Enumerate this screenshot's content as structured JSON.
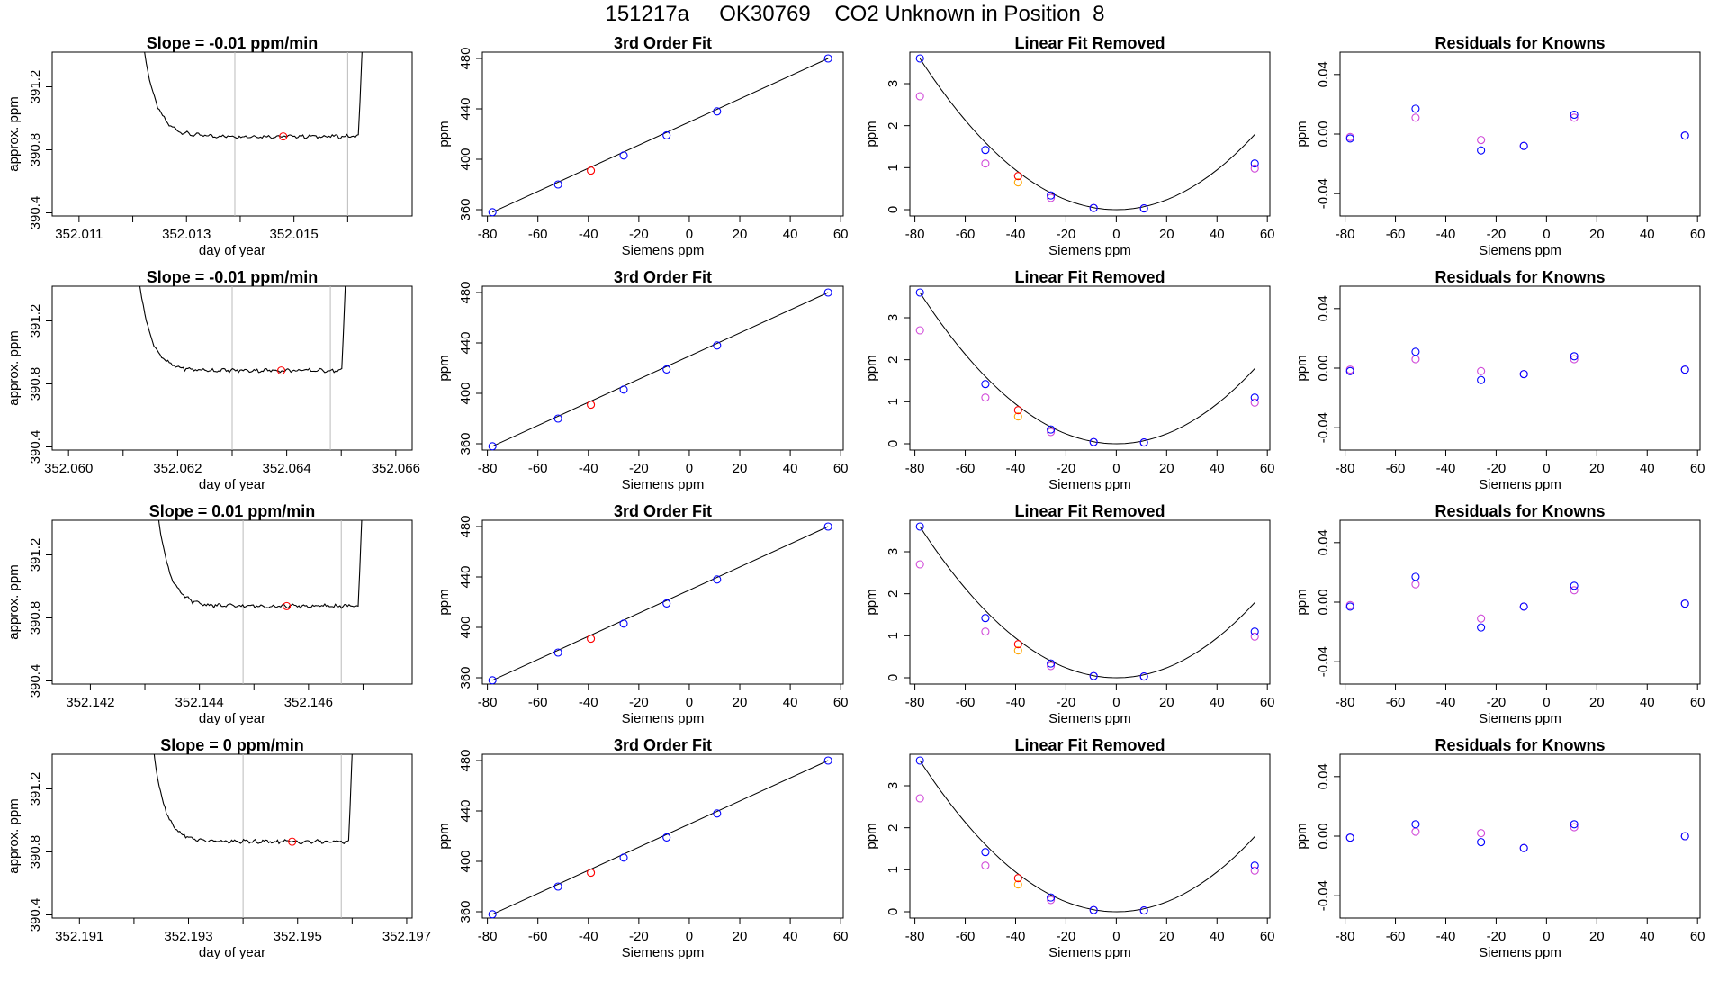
{
  "page_title": "151217a     OK30769    CO2 Unknown in Position  8",
  "axis_text": {
    "col1_xlabel": "day of year",
    "col1_ylabel": "approx. ppm",
    "fit_xlabel": "Siemens ppm",
    "fit_ylabel": "ppm"
  },
  "colors": {
    "trace": "#000000",
    "known": "#0000ff",
    "unknown": "#ff0000",
    "removed_alt": "#d048d8",
    "orange": "#ffa500",
    "vline": "#bbbbbb"
  },
  "chart_data": [
    {
      "type": "line",
      "row": 0,
      "panel": "trace",
      "title": "Slope =  -0.01  ppm/min",
      "xlabel": "day of year",
      "ylabel": "approx. ppm",
      "xlim": [
        352.0105,
        352.0172
      ],
      "ylim": [
        390.38,
        391.42
      ],
      "xticks": [
        352.011,
        352.013,
        352.015
      ],
      "xticks_minor": [
        352.012,
        352.014,
        352.016
      ],
      "yticks": [
        390.4,
        390.8,
        391.2
      ],
      "baseline": 390.885,
      "vlines": [
        352.0139,
        352.016
      ],
      "unknown_point": [
        352.0148,
        390.885
      ],
      "trace_start": 352.0121,
      "trace_end": 352.01635
    },
    {
      "type": "scatter",
      "row": 0,
      "panel": "fit",
      "title": "3rd Order Fit",
      "xlabel": "Siemens ppm",
      "ylabel": "ppm",
      "xlim": [
        -82,
        61
      ],
      "ylim": [
        355,
        485
      ],
      "xticks": [
        -80,
        -60,
        -40,
        -20,
        0,
        20,
        40,
        60
      ],
      "yticks": [
        360,
        400,
        440,
        480
      ],
      "knowns_x": [
        -78,
        -52,
        -26,
        -9,
        11,
        55
      ],
      "knowns_y": [
        358,
        380,
        403,
        419,
        438,
        480
      ],
      "unknown": [
        -39,
        391
      ]
    },
    {
      "type": "scatter",
      "row": 0,
      "panel": "removed",
      "title": "Linear Fit Removed",
      "xlabel": "Siemens ppm",
      "ylabel": "ppm",
      "xlim": [
        -82,
        61
      ],
      "ylim": [
        -0.15,
        3.75
      ],
      "xticks": [
        -80,
        -60,
        -40,
        -20,
        0,
        20,
        40,
        60
      ],
      "yticks": [
        0,
        1,
        2,
        3
      ],
      "knowns_x": [
        -78,
        -52,
        -26,
        -9,
        11,
        55
      ],
      "knowns_y": [
        3.6,
        1.42,
        0.34,
        0.04,
        0.03,
        1.1
      ],
      "alt_y": [
        2.7,
        1.1,
        0.28,
        0.04,
        0.03,
        0.98
      ],
      "unknown": [
        -39,
        0.8
      ],
      "unknown_alt": [
        -39,
        0.65
      ]
    },
    {
      "type": "scatter",
      "row": 0,
      "panel": "residuals",
      "title": "Residuals for Knowns",
      "xlabel": "Siemens ppm",
      "ylabel": "ppm",
      "xlim": [
        -82,
        61
      ],
      "ylim": [
        -0.055,
        0.055
      ],
      "xticks": [
        -80,
        -60,
        -40,
        -20,
        0,
        20,
        40,
        60
      ],
      "yticks": [
        -0.04,
        0.0,
        0.04
      ],
      "knowns_x": [
        -78,
        -52,
        -26,
        -9,
        11,
        55
      ],
      "knowns_y": [
        -0.003,
        0.017,
        -0.011,
        -0.008,
        0.013,
        -0.001
      ],
      "alt_y": [
        -0.002,
        0.011,
        -0.004,
        -0.008,
        0.011,
        -0.001
      ]
    },
    {
      "type": "line",
      "row": 1,
      "panel": "trace",
      "title": "Slope =  -0.01  ppm/min",
      "xlabel": "day of year",
      "ylabel": "approx. ppm",
      "xlim": [
        352.0597,
        352.0663
      ],
      "ylim": [
        390.38,
        391.42
      ],
      "xticks": [
        352.06,
        352.062,
        352.064,
        352.066
      ],
      "xticks_minor": [
        352.061,
        352.063,
        352.065
      ],
      "yticks": [
        390.4,
        390.8,
        391.2
      ],
      "baseline": 390.885,
      "vlines": [
        352.063,
        352.0648
      ],
      "unknown_point": [
        352.0639,
        390.885
      ],
      "trace_start": 352.0612,
      "trace_end": 352.06515
    },
    {
      "type": "scatter",
      "row": 1,
      "panel": "fit",
      "title": "3rd Order Fit",
      "xlabel": "Siemens ppm",
      "ylabel": "ppm",
      "xlim": [
        -82,
        61
      ],
      "ylim": [
        355,
        485
      ],
      "xticks": [
        -80,
        -60,
        -40,
        -20,
        0,
        20,
        40,
        60
      ],
      "yticks": [
        360,
        400,
        440,
        480
      ],
      "knowns_x": [
        -78,
        -52,
        -26,
        -9,
        11,
        55
      ],
      "knowns_y": [
        358,
        380,
        403,
        419,
        438,
        480
      ],
      "unknown": [
        -39,
        391
      ]
    },
    {
      "type": "scatter",
      "row": 1,
      "panel": "removed",
      "title": "Linear Fit Removed",
      "xlabel": "Siemens ppm",
      "ylabel": "ppm",
      "xlim": [
        -82,
        61
      ],
      "ylim": [
        -0.15,
        3.75
      ],
      "xticks": [
        -80,
        -60,
        -40,
        -20,
        0,
        20,
        40,
        60
      ],
      "yticks": [
        0,
        1,
        2,
        3
      ],
      "knowns_x": [
        -78,
        -52,
        -26,
        -9,
        11,
        55
      ],
      "knowns_y": [
        3.6,
        1.42,
        0.34,
        0.04,
        0.03,
        1.1
      ],
      "alt_y": [
        2.7,
        1.1,
        0.28,
        0.04,
        0.03,
        0.98
      ],
      "unknown": [
        -39,
        0.8
      ],
      "unknown_alt": [
        -39,
        0.65
      ]
    },
    {
      "type": "scatter",
      "row": 1,
      "panel": "residuals",
      "title": "Residuals for Knowns",
      "xlabel": "Siemens ppm",
      "ylabel": "ppm",
      "xlim": [
        -82,
        61
      ],
      "ylim": [
        -0.055,
        0.055
      ],
      "xticks": [
        -80,
        -60,
        -40,
        -20,
        0,
        20,
        40,
        60
      ],
      "yticks": [
        -0.04,
        0.0,
        0.04
      ],
      "knowns_x": [
        -78,
        -52,
        -26,
        -9,
        11,
        55
      ],
      "knowns_y": [
        -0.002,
        0.011,
        -0.008,
        -0.004,
        0.008,
        -0.001
      ],
      "alt_y": [
        -0.001,
        0.006,
        -0.002,
        -0.004,
        0.006,
        -0.001
      ]
    },
    {
      "type": "line",
      "row": 2,
      "panel": "trace",
      "title": "Slope =  0.01  ppm/min",
      "xlabel": "day of year",
      "ylabel": "approx. ppm",
      "xlim": [
        352.1413,
        352.1479
      ],
      "ylim": [
        390.38,
        391.42
      ],
      "xticks": [
        352.142,
        352.144,
        352.146
      ],
      "xticks_minor": [
        352.143,
        352.145,
        352.147
      ],
      "yticks": [
        390.4,
        390.8,
        391.2
      ],
      "baseline": 390.875,
      "vlines": [
        352.1448,
        352.1466
      ],
      "unknown_point": [
        352.1456,
        390.875
      ],
      "trace_start": 352.14315,
      "trace_end": 352.14705
    },
    {
      "type": "scatter",
      "row": 2,
      "panel": "fit",
      "title": "3rd Order Fit",
      "xlabel": "Siemens ppm",
      "ylabel": "ppm",
      "xlim": [
        -82,
        61
      ],
      "ylim": [
        355,
        485
      ],
      "xticks": [
        -80,
        -60,
        -40,
        -20,
        0,
        20,
        40,
        60
      ],
      "yticks": [
        360,
        400,
        440,
        480
      ],
      "knowns_x": [
        -78,
        -52,
        -26,
        -9,
        11,
        55
      ],
      "knowns_y": [
        358,
        380,
        403,
        419,
        438,
        480
      ],
      "unknown": [
        -39,
        391
      ]
    },
    {
      "type": "scatter",
      "row": 2,
      "panel": "removed",
      "title": "Linear Fit Removed",
      "xlabel": "Siemens ppm",
      "ylabel": "ppm",
      "xlim": [
        -82,
        61
      ],
      "ylim": [
        -0.15,
        3.75
      ],
      "xticks": [
        -80,
        -60,
        -40,
        -20,
        0,
        20,
        40,
        60
      ],
      "yticks": [
        0,
        1,
        2,
        3
      ],
      "knowns_x": [
        -78,
        -52,
        -26,
        -9,
        11,
        55
      ],
      "knowns_y": [
        3.6,
        1.42,
        0.34,
        0.04,
        0.03,
        1.1
      ],
      "alt_y": [
        2.7,
        1.1,
        0.28,
        0.04,
        0.03,
        0.98
      ],
      "unknown": [
        -39,
        0.8
      ],
      "unknown_alt": [
        -39,
        0.65
      ]
    },
    {
      "type": "scatter",
      "row": 2,
      "panel": "residuals",
      "title": "Residuals for Knowns",
      "xlabel": "Siemens ppm",
      "ylabel": "ppm",
      "xlim": [
        -82,
        61
      ],
      "ylim": [
        -0.055,
        0.055
      ],
      "xticks": [
        -80,
        -60,
        -40,
        -20,
        0,
        20,
        40,
        60
      ],
      "yticks": [
        -0.04,
        0.0,
        0.04
      ],
      "knowns_x": [
        -78,
        -52,
        -26,
        -9,
        11,
        55
      ],
      "knowns_y": [
        -0.003,
        0.017,
        -0.017,
        -0.003,
        0.011,
        -0.001
      ],
      "alt_y": [
        -0.002,
        0.012,
        -0.011,
        -0.003,
        0.008,
        -0.001
      ]
    },
    {
      "type": "line",
      "row": 3,
      "panel": "trace",
      "title": "Slope =  0  ppm/min",
      "xlabel": "day of year",
      "ylabel": "approx. ppm",
      "xlim": [
        352.1905,
        352.1971
      ],
      "ylim": [
        390.38,
        391.42
      ],
      "xticks": [
        352.191,
        352.193,
        352.195,
        352.197
      ],
      "xticks_minor": [
        352.192,
        352.194,
        352.196
      ],
      "yticks": [
        390.4,
        390.8,
        391.2
      ],
      "baseline": 390.865,
      "vlines": [
        352.194,
        352.1958
      ],
      "unknown_point": [
        352.1949,
        390.865
      ],
      "trace_start": 352.19227,
      "trace_end": 352.19607
    },
    {
      "type": "scatter",
      "row": 3,
      "panel": "fit",
      "title": "3rd Order Fit",
      "xlabel": "Siemens ppm",
      "ylabel": "ppm",
      "xlim": [
        -82,
        61
      ],
      "ylim": [
        355,
        485
      ],
      "xticks": [
        -80,
        -60,
        -40,
        -20,
        0,
        20,
        40,
        60
      ],
      "yticks": [
        360,
        400,
        440,
        480
      ],
      "knowns_x": [
        -78,
        -52,
        -26,
        -9,
        11,
        55
      ],
      "knowns_y": [
        358,
        380,
        403,
        419,
        438,
        480
      ],
      "unknown": [
        -39,
        391
      ]
    },
    {
      "type": "scatter",
      "row": 3,
      "panel": "removed",
      "title": "Linear Fit Removed",
      "xlabel": "Siemens ppm",
      "ylabel": "ppm",
      "xlim": [
        -82,
        61
      ],
      "ylim": [
        -0.15,
        3.75
      ],
      "xticks": [
        -80,
        -60,
        -40,
        -20,
        0,
        20,
        40,
        60
      ],
      "yticks": [
        0,
        1,
        2,
        3
      ],
      "knowns_x": [
        -78,
        -52,
        -26,
        -9,
        11,
        55
      ],
      "knowns_y": [
        3.6,
        1.42,
        0.34,
        0.04,
        0.03,
        1.1
      ],
      "alt_y": [
        2.7,
        1.1,
        0.28,
        0.04,
        0.03,
        0.98
      ],
      "unknown": [
        -39,
        0.8
      ],
      "unknown_alt": [
        -39,
        0.65
      ]
    },
    {
      "type": "scatter",
      "row": 3,
      "panel": "residuals",
      "title": "Residuals for Knowns",
      "xlabel": "Siemens ppm",
      "ylabel": "ppm",
      "xlim": [
        -82,
        61
      ],
      "ylim": [
        -0.055,
        0.055
      ],
      "xticks": [
        -80,
        -60,
        -40,
        -20,
        0,
        20,
        40,
        60
      ],
      "yticks": [
        -0.04,
        0.0,
        0.04
      ],
      "knowns_x": [
        -78,
        -52,
        -26,
        -9,
        11,
        55
      ],
      "knowns_y": [
        -0.001,
        0.008,
        -0.004,
        -0.008,
        0.008,
        0.0
      ],
      "alt_y": [
        -0.001,
        0.003,
        0.002,
        -0.008,
        0.006,
        0.0
      ]
    }
  ]
}
